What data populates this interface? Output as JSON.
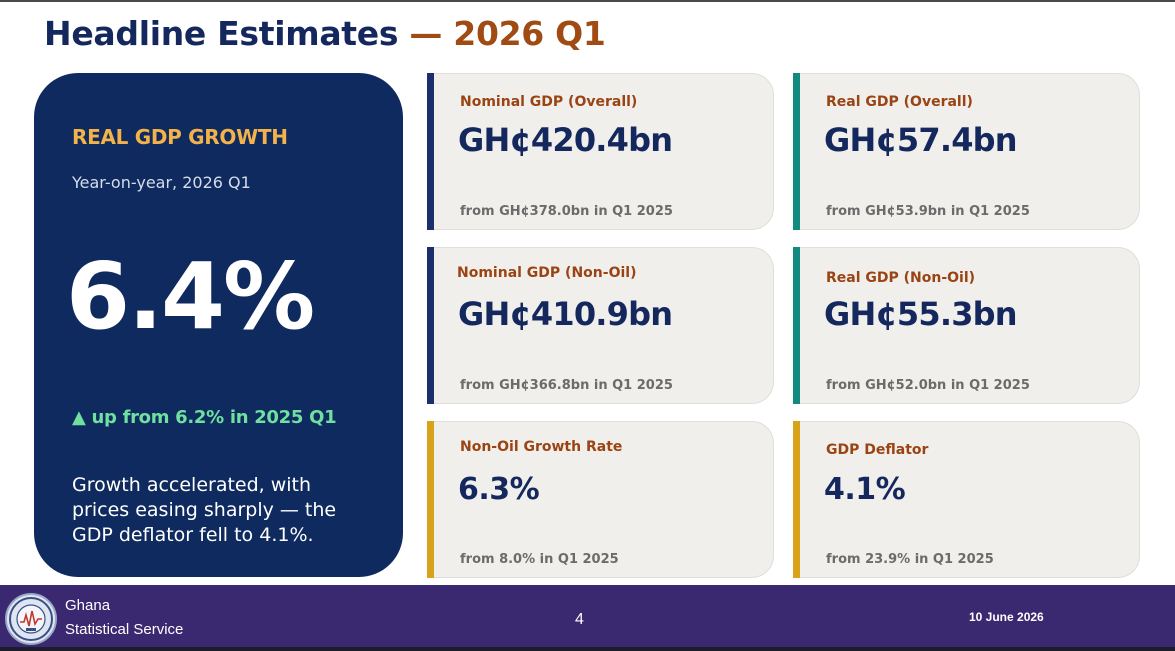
{
  "title": {
    "main": "Headline Estimates",
    "accent": "— 2026 Q1"
  },
  "hero": {
    "label": "REAL GDP GROWTH",
    "subtitle": "Year-on-year, 2026 Q1",
    "value": "6.4%",
    "change": "▲ up from 6.2% in 2025 Q1",
    "description": "Growth accelerated, with prices easing sharply — the GDP deflator fell to 4.1%."
  },
  "cards": [
    {
      "label": "Nominal GDP (Overall)",
      "value": "GH¢420.4bn",
      "from": "from GH¢378.0bn in Q1 2025",
      "accent": "#1a2f6b"
    },
    {
      "label": "Real GDP (Overall)",
      "value": "GH¢57.4bn",
      "from": "from GH¢53.9bn in Q1 2025",
      "accent": "#138a80"
    },
    {
      "label": "Nominal GDP (Non-Oil)",
      "value": "GH¢410.9bn",
      "from": "from GH¢366.8bn  in Q1 2025",
      "accent": "#1a2f6b"
    },
    {
      "label": "Real GDP (Non-Oil)",
      "value": "GH¢55.3bn",
      "from": "from GH¢52.0bn in Q1 2025",
      "accent": "#138a80"
    },
    {
      "label": "Non-Oil Growth Rate",
      "value": "6.3%",
      "from": "from 8.0% in Q1 2025",
      "accent": "#d9a21b"
    },
    {
      "label": "GDP Deflator",
      "value": "4.1%",
      "from": "from 23.9% in Q1 2025",
      "accent": "#d9a21b"
    }
  ],
  "footer": {
    "org_line1": "Ghana",
    "org_line2": "Statistical Service",
    "page": "4",
    "date": "10 June 2026",
    "logo_icon": "ghana-statistical-service-seal-icon"
  }
}
